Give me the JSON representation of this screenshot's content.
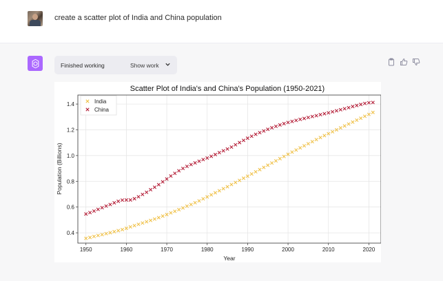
{
  "user": {
    "message": "create a scatter plot of India and China population"
  },
  "assistant": {
    "status_label": "Finished working",
    "show_work_label": "Show work",
    "action_icons": [
      "clipboard-icon",
      "thumbs-up-icon",
      "thumbs-down-icon"
    ]
  },
  "chart_data": {
    "type": "scatter",
    "title": "Scatter Plot of India's and China's Population (1950-2021)",
    "xlabel": "Year",
    "ylabel": "Population (Billions)",
    "xlim": [
      1948,
      2023
    ],
    "ylim": [
      0.32,
      1.47
    ],
    "xticks": [
      1950,
      1960,
      1970,
      1980,
      1990,
      2000,
      2010,
      2020
    ],
    "yticks": [
      0.4,
      0.6,
      0.8,
      1.0,
      1.2,
      1.4
    ],
    "grid": true,
    "legend_position": "top-left",
    "marker": "x",
    "series": [
      {
        "name": "India",
        "color": "#f0c24b",
        "x": [
          1950,
          1951,
          1952,
          1953,
          1954,
          1955,
          1956,
          1957,
          1958,
          1959,
          1960,
          1961,
          1962,
          1963,
          1964,
          1965,
          1966,
          1967,
          1968,
          1969,
          1970,
          1971,
          1972,
          1973,
          1974,
          1975,
          1976,
          1977,
          1978,
          1979,
          1980,
          1981,
          1982,
          1983,
          1984,
          1985,
          1986,
          1987,
          1988,
          1989,
          1990,
          1991,
          1992,
          1993,
          1994,
          1995,
          1996,
          1997,
          1998,
          1999,
          2000,
          2001,
          2002,
          2003,
          2004,
          2005,
          2006,
          2007,
          2008,
          2009,
          2010,
          2011,
          2012,
          2013,
          2014,
          2015,
          2016,
          2017,
          2018,
          2019,
          2020,
          2021
        ],
        "y": [
          0.357,
          0.364,
          0.372,
          0.379,
          0.386,
          0.394,
          0.401,
          0.409,
          0.417,
          0.425,
          0.435,
          0.446,
          0.456,
          0.466,
          0.476,
          0.486,
          0.496,
          0.507,
          0.518,
          0.53,
          0.542,
          0.555,
          0.567,
          0.58,
          0.593,
          0.607,
          0.62,
          0.634,
          0.648,
          0.664,
          0.679,
          0.695,
          0.711,
          0.727,
          0.743,
          0.758,
          0.775,
          0.791,
          0.807,
          0.824,
          0.84,
          0.857,
          0.874,
          0.891,
          0.908,
          0.925,
          0.942,
          0.959,
          0.976,
          0.993,
          1.01,
          1.027,
          1.043,
          1.06,
          1.076,
          1.092,
          1.108,
          1.124,
          1.14,
          1.155,
          1.17,
          1.185,
          1.2,
          1.215,
          1.23,
          1.245,
          1.26,
          1.275,
          1.29,
          1.305,
          1.32,
          1.335
        ]
      },
      {
        "name": "China",
        "color": "#b5213a",
        "x": [
          1950,
          1951,
          1952,
          1953,
          1954,
          1955,
          1956,
          1957,
          1958,
          1959,
          1960,
          1961,
          1962,
          1963,
          1964,
          1965,
          1966,
          1967,
          1968,
          1969,
          1970,
          1971,
          1972,
          1973,
          1974,
          1975,
          1976,
          1977,
          1978,
          1979,
          1980,
          1981,
          1982,
          1983,
          1984,
          1985,
          1986,
          1987,
          1988,
          1989,
          1990,
          1991,
          1992,
          1993,
          1994,
          1995,
          1996,
          1997,
          1998,
          1999,
          2000,
          2001,
          2002,
          2003,
          2004,
          2005,
          2006,
          2007,
          2008,
          2009,
          2010,
          2011,
          2012,
          2013,
          2014,
          2015,
          2016,
          2017,
          2018,
          2019,
          2020,
          2021
        ],
        "y": [
          0.546,
          0.557,
          0.569,
          0.582,
          0.595,
          0.608,
          0.62,
          0.633,
          0.645,
          0.654,
          0.655,
          0.655,
          0.665,
          0.68,
          0.698,
          0.715,
          0.735,
          0.754,
          0.774,
          0.796,
          0.818,
          0.841,
          0.862,
          0.882,
          0.9,
          0.916,
          0.93,
          0.943,
          0.956,
          0.969,
          0.981,
          0.994,
          1.008,
          1.023,
          1.037,
          1.051,
          1.066,
          1.084,
          1.101,
          1.118,
          1.135,
          1.15,
          1.165,
          1.178,
          1.191,
          1.204,
          1.216,
          1.227,
          1.238,
          1.248,
          1.257,
          1.265,
          1.273,
          1.281,
          1.288,
          1.296,
          1.303,
          1.31,
          1.318,
          1.325,
          1.332,
          1.34,
          1.348,
          1.356,
          1.364,
          1.372,
          1.381,
          1.389,
          1.397,
          1.405,
          1.41,
          1.412
        ]
      }
    ]
  }
}
